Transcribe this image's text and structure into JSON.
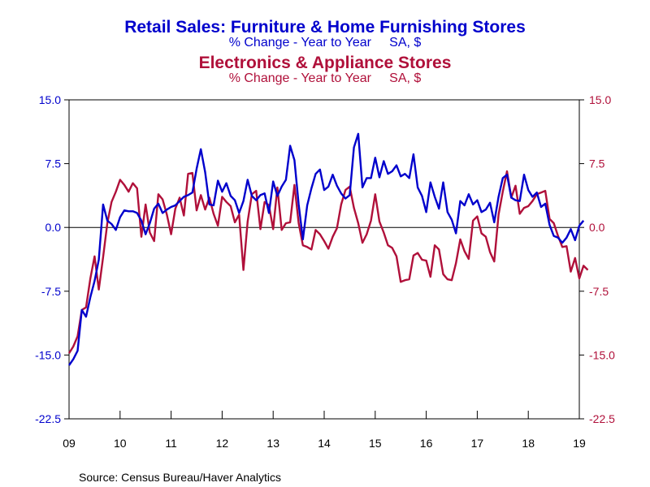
{
  "chart_data": {
    "type": "line",
    "titles": [
      {
        "title": "Retail Sales: Furniture & Home Furnishing Stores",
        "subtitle": "% Change - Year to Year     SA, $",
        "color": "#0000cc"
      },
      {
        "title": "Electronics & Appliance Stores",
        "subtitle": "% Change - Year to Year     SA, $",
        "color": "#b0103a"
      }
    ],
    "x_tick_labels": [
      "09",
      "10",
      "11",
      "12",
      "13",
      "14",
      "15",
      "16",
      "17",
      "18",
      "19"
    ],
    "x_start": 2009.0,
    "x_end": 2019.0,
    "x_step": 0.083333,
    "ylim": [
      -22.5,
      15.0
    ],
    "y_ticks": [
      15.0,
      7.5,
      0.0,
      -7.5,
      -15.0,
      -22.5
    ],
    "left_y_tick_labels": [
      "15.0",
      "7.5",
      "0.0",
      "-7.5",
      "-15.0",
      "-22.5"
    ],
    "right_y_tick_labels": [
      "15.0",
      "7.5",
      "0.0",
      "-7.5",
      "-15.0",
      "-22.5"
    ],
    "grid": false,
    "zero_line": true,
    "series": [
      {
        "name": "Furniture & Home Furnishing Stores",
        "color": "#0000cc",
        "values": [
          -16.2,
          -15.5,
          -14.5,
          -9.7,
          -10.5,
          -8.2,
          -6.3,
          -3.8,
          2.7,
          0.8,
          0.4,
          -0.3,
          1.2,
          2.0,
          1.9,
          1.9,
          1.7,
          0.8,
          -0.8,
          0.5,
          2.2,
          2.8,
          1.7,
          2.1,
          2.4,
          2.6,
          3.1,
          3.6,
          3.8,
          4.1,
          6.9,
          9.2,
          6.5,
          2.7,
          2.6,
          5.5,
          4.2,
          5.2,
          3.7,
          3.2,
          1.7,
          3.1,
          5.6,
          3.7,
          3.2,
          3.8,
          4.0,
          1.7,
          5.4,
          3.7,
          4.8,
          5.6,
          9.6,
          7.9,
          2.7,
          -1.4,
          2.6,
          4.6,
          6.3,
          6.8,
          4.4,
          4.8,
          6.2,
          4.9,
          4.0,
          3.4,
          3.8,
          9.4,
          11.0,
          4.7,
          5.8,
          5.8,
          8.2,
          5.9,
          7.8,
          6.3,
          6.6,
          7.3,
          6.0,
          6.3,
          5.8,
          8.6,
          4.7,
          3.7,
          1.8,
          5.3,
          3.6,
          2.2,
          5.3,
          1.8,
          0.9,
          -0.7,
          3.1,
          2.6,
          3.9,
          2.7,
          3.2,
          1.8,
          2.1,
          2.9,
          0.6,
          3.6,
          5.8,
          6.2,
          3.5,
          3.2,
          3.1,
          6.2,
          4.4,
          3.6,
          4.1,
          2.4,
          2.8,
          0.3,
          -1.0,
          -1.2,
          -1.8,
          -1.2,
          -0.2,
          -1.5,
          0.2,
          0.8
        ]
      },
      {
        "name": "Electronics & Appliance Stores",
        "color": "#b0103a",
        "values": [
          -14.8,
          -14.0,
          -12.8,
          -9.7,
          -9.4,
          -6.0,
          -3.4,
          -7.3,
          -3.5,
          0.5,
          3.0,
          4.2,
          5.6,
          5.0,
          4.2,
          5.2,
          4.6,
          -1.1,
          2.7,
          -0.6,
          -1.6,
          3.9,
          3.3,
          1.5,
          -0.8,
          2.2,
          3.5,
          1.4,
          6.3,
          6.4,
          2.0,
          3.8,
          2.1,
          3.5,
          1.6,
          0.2,
          3.6,
          3.0,
          2.5,
          0.6,
          1.5,
          -5.0,
          0.7,
          3.9,
          4.3,
          -0.2,
          3.0,
          2.6,
          -0.2,
          4.7,
          -0.3,
          0.5,
          0.6,
          5.0,
          0.5,
          -2.1,
          -2.3,
          -2.6,
          -0.3,
          -0.8,
          -1.6,
          -2.5,
          -1.1,
          -0.1,
          2.7,
          4.4,
          4.8,
          2.3,
          0.5,
          -1.8,
          -0.8,
          0.8,
          3.9,
          0.7,
          -0.6,
          -2.1,
          -2.4,
          -3.4,
          -6.4,
          -6.2,
          -6.1,
          -3.3,
          -3.0,
          -3.8,
          -3.9,
          -5.8,
          -2.1,
          -2.6,
          -5.5,
          -6.1,
          -6.2,
          -4.2,
          -1.4,
          -2.8,
          -3.7,
          0.8,
          1.3,
          -0.7,
          -1.1,
          -2.9,
          -4.0,
          1.5,
          4.2,
          6.6,
          3.5,
          4.9,
          1.6,
          2.3,
          2.5,
          3.1,
          3.9,
          4.1,
          4.3,
          1.0,
          0.5,
          -1.0,
          -2.3,
          -2.2,
          -5.2,
          -3.6,
          -6.0,
          -4.5,
          -5.0
        ]
      }
    ]
  },
  "footer": {
    "source": "Source:  Census Bureau/Haver Analytics"
  }
}
